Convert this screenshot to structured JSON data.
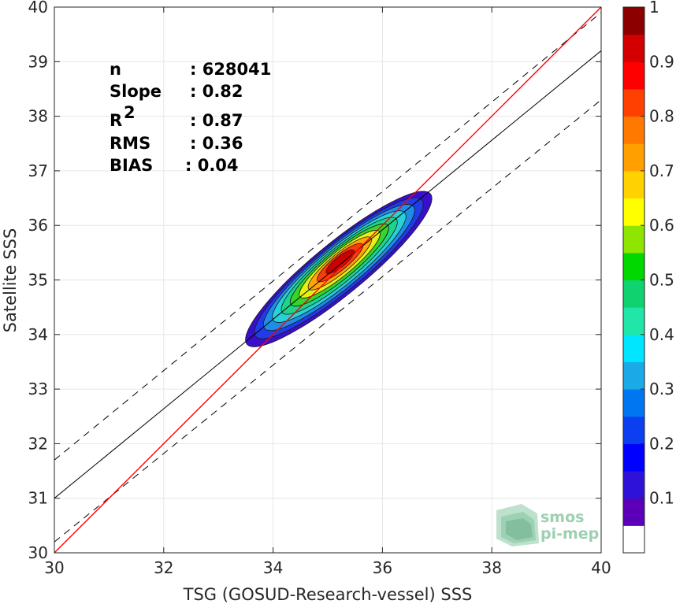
{
  "chart_data": {
    "type": "heatmap",
    "subtype": "filled-contour density scatter",
    "xlabel": "TSG (GOSUD-Research-vessel) SSS",
    "ylabel": "Satellite SSS",
    "xlim": [
      30,
      40
    ],
    "ylim": [
      30,
      40
    ],
    "xticks": [
      "30",
      "32",
      "34",
      "36",
      "38",
      "40"
    ],
    "yticks": [
      "30",
      "31",
      "32",
      "33",
      "34",
      "35",
      "36",
      "37",
      "38",
      "39",
      "40"
    ],
    "grid": true,
    "stats": [
      {
        "label": "n",
        "value": ": 628041"
      },
      {
        "label": "Slope",
        "value": ": 0.82"
      },
      {
        "label": "R",
        "sup": "2",
        "value": ": 0.87"
      },
      {
        "label": "RMS",
        "value": ": 0.36"
      },
      {
        "label": "BIAS",
        "value": ": 0.04"
      }
    ],
    "lines": {
      "identity": {
        "color": "#ff0000",
        "x": [
          30,
          40
        ],
        "y": [
          30,
          40
        ]
      },
      "fit": {
        "color": "#000000",
        "style": "solid",
        "x": [
          30,
          40
        ],
        "y": [
          31.0,
          39.2
        ]
      },
      "fit_upper": {
        "color": "#000000",
        "style": "dashed",
        "x": [
          30,
          40
        ],
        "y": [
          31.7,
          39.9
        ]
      },
      "fit_lower": {
        "color": "#000000",
        "style": "dashed",
        "x": [
          30,
          40
        ],
        "y": [
          30.2,
          38.3
        ]
      }
    },
    "density": {
      "center": [
        35.2,
        35.2
      ],
      "major_axis_slope": 0.82,
      "levels": [
        0.05,
        0.15,
        0.25,
        0.35,
        0.45,
        0.55,
        0.65,
        0.75,
        0.85,
        0.95
      ]
    },
    "colorbar": {
      "ticks": [
        "0.1",
        "0.2",
        "0.3",
        "0.4",
        "0.5",
        "0.6",
        "0.7",
        "0.8",
        "0.9",
        "1"
      ],
      "range": [
        0,
        1
      ],
      "colors": [
        "#ffffff",
        "#5b00b8",
        "#2e12d8",
        "#0000ff",
        "#0c3ff0",
        "#0077f0",
        "#1aaae8",
        "#00e6ff",
        "#20e6a8",
        "#10d26e",
        "#00d800",
        "#8ee600",
        "#ffff00",
        "#ffd200",
        "#ffa000",
        "#ff7800",
        "#ff4000",
        "#ff0000",
        "#d20000",
        "#8c0000"
      ]
    },
    "contour_colors": [
      "#3a0fcc",
      "#1f3ce8",
      "#1d8de8",
      "#28d0d8",
      "#1dd58a",
      "#36d52a",
      "#e8ee14",
      "#ffa60a",
      "#ff3a0a",
      "#d00000"
    ]
  },
  "logo": {
    "line1": "smos",
    "line2": "pi-mep"
  }
}
